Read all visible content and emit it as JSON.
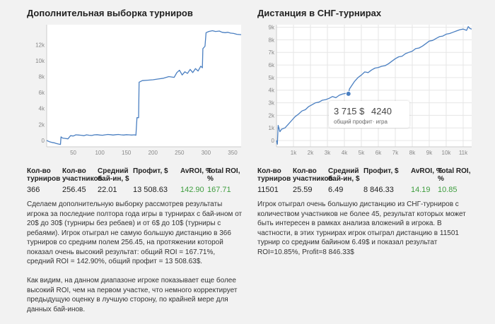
{
  "left": {
    "title": "Дополнительная выборка турниров",
    "stats": [
      {
        "header": "Кол-во\nтурниров",
        "value": "366",
        "green": false
      },
      {
        "header": "Кол-во\nучастников",
        "value": "256.45",
        "green": false
      },
      {
        "header": "Средний\nбай-ин, $",
        "value": "22.01",
        "green": false
      },
      {
        "header": "Профит, $",
        "value": "13 508.63",
        "green": false
      },
      {
        "header": "AvROI, %",
        "value": "142.90",
        "green": true
      },
      {
        "header": "Total ROI,\n%",
        "value": "167.71",
        "green": true
      }
    ],
    "paragraphs": [
      "Сделаем дополнительную выборку рассмотрев результаты игрока за последние полтора года игры в турнирах с бай-ином от 20$ до 30$ (турниры без ребаев) и от 6$ до 10$ (турниры с ребаями). Игрок отыграл не самую большую дистанцию в 366 турниров со средним полем 256.45, на протяжении которой показал очень высокий результат: общий ROI = 167.71%, средний ROI = 142.90%, общий профит = 13 508.63$.",
      "Как видим, на данном диапазоне игроке показывает еще более высокий ROI, чем на первом участке, что немного корректирует предыдущую оценку в лучшую сторону, по крайней мере для данных бай-инов."
    ]
  },
  "right": {
    "title": "Дистанция в СНГ-турнирах",
    "stats": [
      {
        "header": "Кол-во\nтурниров",
        "value": "11501",
        "green": false
      },
      {
        "header": "Кол-во\nучастников",
        "value": "25.59",
        "green": false
      },
      {
        "header": "Средний\nбай-ин, $",
        "value": "6.49",
        "green": false
      },
      {
        "header": "Профит, $",
        "value": "8 846.33",
        "green": false
      },
      {
        "header": "AvROI, %",
        "value": "14.19",
        "green": true
      },
      {
        "header": "Total ROI,\n%",
        "value": "10.85",
        "green": true
      }
    ],
    "paragraphs": [
      "Игрок отыграл очень большую дистанцию из СНГ-турниров с количеством участников не более 45, результат которых может быть интересен в рамках анализа вложений в игрока. В частности, в этих турнирах игрок отыграл дистанцию в 11501 турнир со средним байином 6.49$ и показал результат ROI=10.85%, Profit=8 846.33$"
    ],
    "tooltip": {
      "value1": "3 715 $",
      "value2": "4240",
      "label": "общий профит· игра"
    }
  },
  "chart_data": [
    {
      "type": "line",
      "title": "Дополнительная выборка турниров",
      "xlim": [
        0,
        366
      ],
      "ylim": [
        -800,
        14500
      ],
      "xticks": [
        50,
        100,
        150,
        200,
        250,
        300,
        350
      ],
      "xtick_labels": [
        "50",
        "100",
        "150",
        "200",
        "250",
        "300",
        "350"
      ],
      "yticks": [
        0,
        2000,
        4000,
        6000,
        8000,
        10000,
        12000
      ],
      "ytick_labels": [
        "0",
        "2k",
        "4k",
        "6k",
        "8k",
        "10k",
        "12k"
      ],
      "color": "#4a7fc1",
      "grid": false,
      "points": [
        [
          0,
          0
        ],
        [
          5,
          -150
        ],
        [
          10,
          -250
        ],
        [
          14,
          -300
        ],
        [
          18,
          -380
        ],
        [
          22,
          -450
        ],
        [
          26,
          -500
        ],
        [
          27,
          450
        ],
        [
          30,
          300
        ],
        [
          35,
          250
        ],
        [
          40,
          200
        ],
        [
          45,
          600
        ],
        [
          50,
          550
        ],
        [
          55,
          700
        ],
        [
          60,
          680
        ],
        [
          65,
          650
        ],
        [
          70,
          600
        ],
        [
          75,
          700
        ],
        [
          80,
          650
        ],
        [
          85,
          620
        ],
        [
          90,
          700
        ],
        [
          95,
          720
        ],
        [
          100,
          680
        ],
        [
          105,
          650
        ],
        [
          110,
          700
        ],
        [
          115,
          750
        ],
        [
          120,
          720
        ],
        [
          125,
          680
        ],
        [
          130,
          720
        ],
        [
          135,
          750
        ],
        [
          140,
          700
        ],
        [
          145,
          680
        ],
        [
          150,
          720
        ],
        [
          155,
          700
        ],
        [
          160,
          680
        ],
        [
          165,
          700
        ],
        [
          168,
          650
        ],
        [
          170,
          2850
        ],
        [
          173,
          2850
        ],
        [
          174,
          7300
        ],
        [
          180,
          7500
        ],
        [
          190,
          7550
        ],
        [
          200,
          7600
        ],
        [
          210,
          7700
        ],
        [
          220,
          7800
        ],
        [
          230,
          8000
        ],
        [
          240,
          7900
        ],
        [
          245,
          8500
        ],
        [
          250,
          8800
        ],
        [
          255,
          8200
        ],
        [
          260,
          8600
        ],
        [
          265,
          8400
        ],
        [
          270,
          8900
        ],
        [
          275,
          8500
        ],
        [
          280,
          9000
        ],
        [
          285,
          8700
        ],
        [
          290,
          9300
        ],
        [
          293,
          9100
        ],
        [
          294,
          11500
        ],
        [
          298,
          11800
        ],
        [
          300,
          13500
        ],
        [
          305,
          13650
        ],
        [
          312,
          13750
        ],
        [
          318,
          13650
        ],
        [
          325,
          13700
        ],
        [
          330,
          13550
        ],
        [
          336,
          13500
        ],
        [
          341,
          13550
        ],
        [
          346,
          13450
        ],
        [
          352,
          13400
        ],
        [
          358,
          13300
        ],
        [
          366,
          13250
        ]
      ]
    },
    {
      "type": "line",
      "title": "Дистанция в СНГ-турнирах",
      "xlim": [
        0,
        11501
      ],
      "ylim": [
        -500,
        9200
      ],
      "xticks": [
        1000,
        2000,
        3000,
        4000,
        5000,
        6000,
        7000,
        8000,
        9000,
        10000,
        11000
      ],
      "xtick_labels": [
        "1k",
        "2k",
        "3k",
        "4k",
        "5k",
        "6k",
        "7k",
        "8k",
        "9k",
        "10k",
        "11k"
      ],
      "yticks": [
        0,
        1000,
        2000,
        3000,
        4000,
        5000,
        6000,
        7000,
        8000,
        9000
      ],
      "ytick_labels": [
        "0",
        "1k",
        "2k",
        "3k",
        "4k",
        "5k",
        "6k",
        "7k",
        "8k",
        "9k"
      ],
      "color": "#4a7fc1",
      "grid": true,
      "highlight": {
        "x": 4240,
        "y": 3715
      },
      "points": [
        [
          0,
          0
        ],
        [
          50,
          -300
        ],
        [
          100,
          1200
        ],
        [
          200,
          700
        ],
        [
          300,
          900
        ],
        [
          500,
          1000
        ],
        [
          700,
          1300
        ],
        [
          900,
          1600
        ],
        [
          1100,
          1900
        ],
        [
          1300,
          2100
        ],
        [
          1500,
          2350
        ],
        [
          1700,
          2450
        ],
        [
          1900,
          2700
        ],
        [
          2100,
          2850
        ],
        [
          2300,
          3000
        ],
        [
          2500,
          3050
        ],
        [
          2700,
          3200
        ],
        [
          2900,
          3250
        ],
        [
          3100,
          3350
        ],
        [
          3300,
          3500
        ],
        [
          3500,
          3400
        ],
        [
          3700,
          3600
        ],
        [
          3900,
          3700
        ],
        [
          4100,
          3750
        ],
        [
          4240,
          3715
        ],
        [
          4300,
          4100
        ],
        [
          4450,
          4400
        ],
        [
          4600,
          4700
        ],
        [
          4800,
          5000
        ],
        [
          5000,
          5200
        ],
        [
          5200,
          5450
        ],
        [
          5400,
          5400
        ],
        [
          5600,
          5600
        ],
        [
          5800,
          5750
        ],
        [
          6000,
          5800
        ],
        [
          6200,
          5900
        ],
        [
          6400,
          5950
        ],
        [
          6600,
          6100
        ],
        [
          6800,
          6300
        ],
        [
          7000,
          6500
        ],
        [
          7200,
          6650
        ],
        [
          7400,
          6700
        ],
        [
          7600,
          6900
        ],
        [
          7800,
          7000
        ],
        [
          8000,
          7100
        ],
        [
          8200,
          7300
        ],
        [
          8400,
          7350
        ],
        [
          8600,
          7500
        ],
        [
          8800,
          7700
        ],
        [
          9000,
          7900
        ],
        [
          9200,
          7950
        ],
        [
          9400,
          8100
        ],
        [
          9600,
          8250
        ],
        [
          9800,
          8300
        ],
        [
          10000,
          8450
        ],
        [
          10200,
          8500
        ],
        [
          10400,
          8600
        ],
        [
          10600,
          8700
        ],
        [
          10800,
          8800
        ],
        [
          11000,
          8850
        ],
        [
          11200,
          8750
        ],
        [
          11300,
          9050
        ],
        [
          11400,
          8900
        ],
        [
          11501,
          8850
        ]
      ]
    }
  ]
}
